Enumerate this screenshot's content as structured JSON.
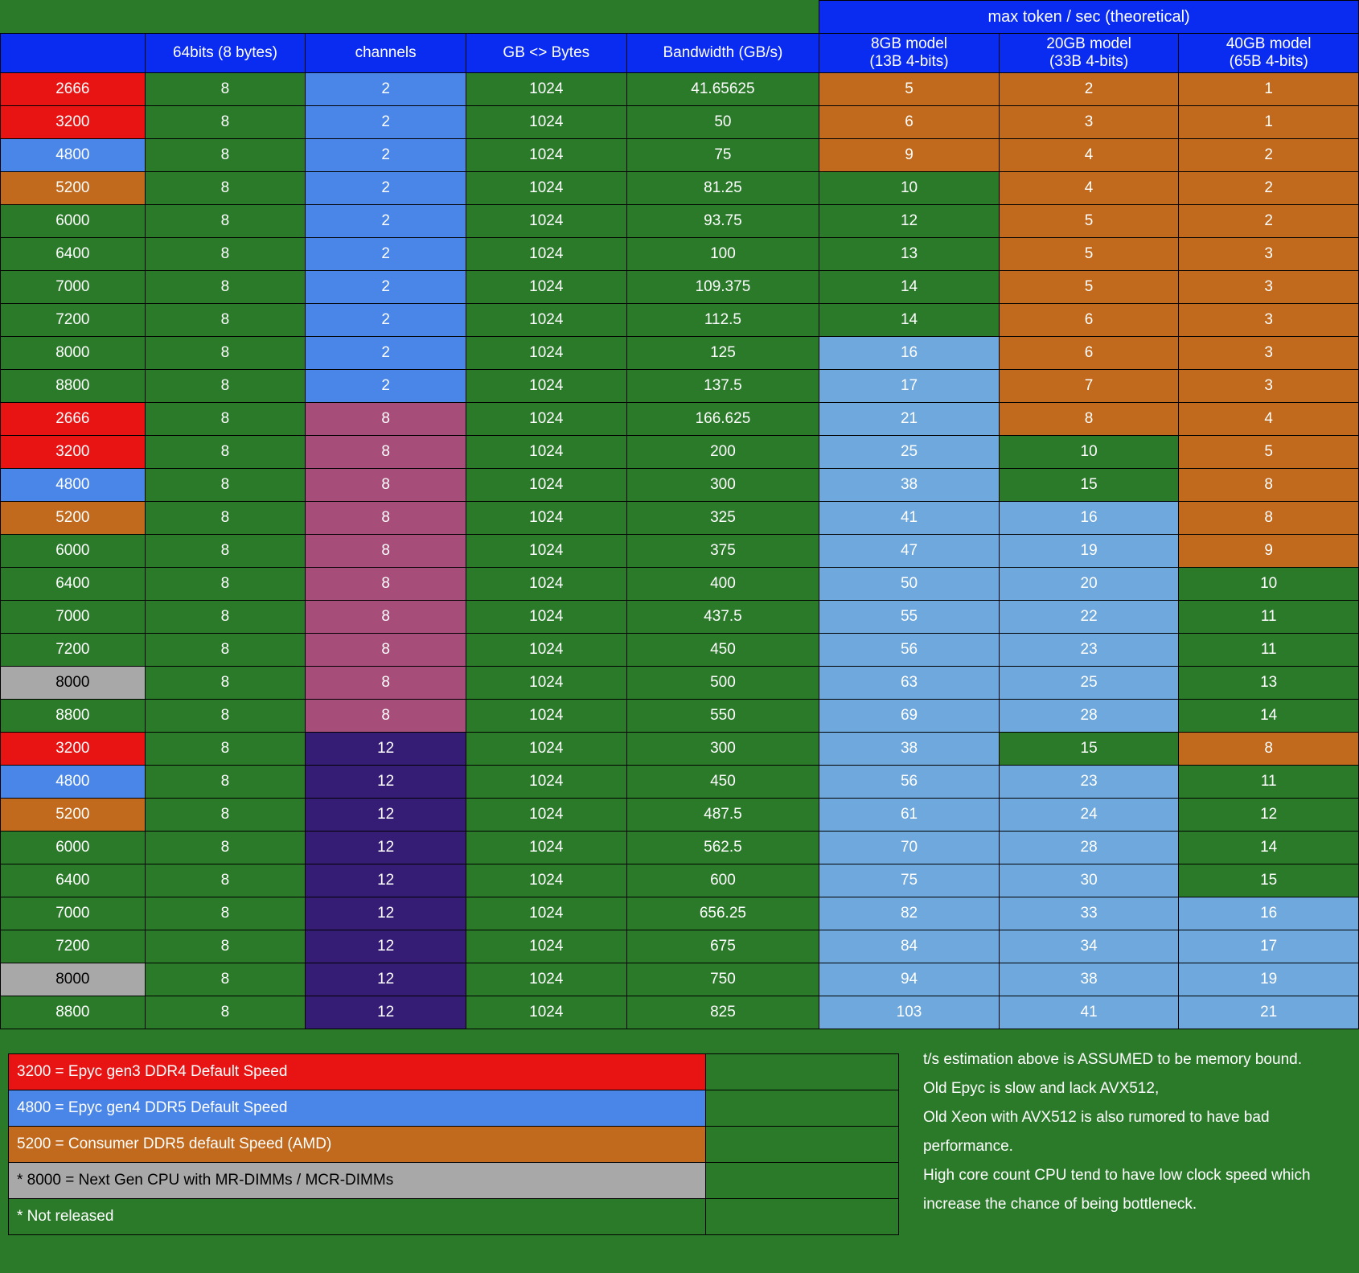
{
  "colors": {
    "bg_green": "#2a7a2a",
    "header_blue": "#0a2cf0",
    "red": "#e81313",
    "blue_cell": "#4a86e8",
    "orange": "#c1691c",
    "gray": "#a8a8a8",
    "purple_light": "#a64d79",
    "purple_dark": "#351c75",
    "lightblue": "#6fa8dc",
    "black": "#000000",
    "white": "#ffffff"
  },
  "header_group": "max token / sec (theoretical)",
  "headers": {
    "col0": "",
    "col1": "64bits (8 bytes)",
    "col2": "channels",
    "col3": "GB <> Bytes",
    "col4": "Bandwidth (GB/s)",
    "col5_a": "8GB model",
    "col5_b": "(13B 4-bits)",
    "col6_a": "20GB model",
    "col6_b": "(33B 4-bits)",
    "col7_a": "40GB model",
    "col7_b": "(65B 4-bits)"
  },
  "rows": [
    {
      "c0": "2666",
      "c0bg": "red",
      "c1": "8",
      "c2": "2",
      "c2bg": "blue_cell",
      "c3": "1024",
      "c4": "41.65625",
      "c5": "5",
      "c5bg": "orange",
      "c6": "2",
      "c6bg": "orange",
      "c7": "1",
      "c7bg": "orange"
    },
    {
      "c0": "3200",
      "c0bg": "red",
      "c1": "8",
      "c2": "2",
      "c2bg": "blue_cell",
      "c3": "1024",
      "c4": "50",
      "c5": "6",
      "c5bg": "orange",
      "c6": "3",
      "c6bg": "orange",
      "c7": "1",
      "c7bg": "orange"
    },
    {
      "c0": "4800",
      "c0bg": "blue_cell",
      "c1": "8",
      "c2": "2",
      "c2bg": "blue_cell",
      "c3": "1024",
      "c4": "75",
      "c5": "9",
      "c5bg": "orange",
      "c6": "4",
      "c6bg": "orange",
      "c7": "2",
      "c7bg": "orange"
    },
    {
      "c0": "5200",
      "c0bg": "orange",
      "c1": "8",
      "c2": "2",
      "c2bg": "blue_cell",
      "c3": "1024",
      "c4": "81.25",
      "c5": "10",
      "c5bg": "bg_green",
      "c6": "4",
      "c6bg": "orange",
      "c7": "2",
      "c7bg": "orange"
    },
    {
      "c0": "6000",
      "c0bg": "bg_green",
      "c1": "8",
      "c2": "2",
      "c2bg": "blue_cell",
      "c3": "1024",
      "c4": "93.75",
      "c5": "12",
      "c5bg": "bg_green",
      "c6": "5",
      "c6bg": "orange",
      "c7": "2",
      "c7bg": "orange"
    },
    {
      "c0": "6400",
      "c0bg": "bg_green",
      "c1": "8",
      "c2": "2",
      "c2bg": "blue_cell",
      "c3": "1024",
      "c4": "100",
      "c5": "13",
      "c5bg": "bg_green",
      "c6": "5",
      "c6bg": "orange",
      "c7": "3",
      "c7bg": "orange"
    },
    {
      "c0": "7000",
      "c0bg": "bg_green",
      "c1": "8",
      "c2": "2",
      "c2bg": "blue_cell",
      "c3": "1024",
      "c4": "109.375",
      "c5": "14",
      "c5bg": "bg_green",
      "c6": "5",
      "c6bg": "orange",
      "c7": "3",
      "c7bg": "orange"
    },
    {
      "c0": "7200",
      "c0bg": "bg_green",
      "c1": "8",
      "c2": "2",
      "c2bg": "blue_cell",
      "c3": "1024",
      "c4": "112.5",
      "c5": "14",
      "c5bg": "bg_green",
      "c6": "6",
      "c6bg": "orange",
      "c7": "3",
      "c7bg": "orange"
    },
    {
      "c0": "8000",
      "c0bg": "bg_green",
      "c1": "8",
      "c2": "2",
      "c2bg": "blue_cell",
      "c3": "1024",
      "c4": "125",
      "c5": "16",
      "c5bg": "lightblue",
      "c6": "6",
      "c6bg": "orange",
      "c7": "3",
      "c7bg": "orange"
    },
    {
      "c0": "8800",
      "c0bg": "bg_green",
      "c1": "8",
      "c2": "2",
      "c2bg": "blue_cell",
      "c3": "1024",
      "c4": "137.5",
      "c5": "17",
      "c5bg": "lightblue",
      "c6": "7",
      "c6bg": "orange",
      "c7": "3",
      "c7bg": "orange"
    },
    {
      "c0": "2666",
      "c0bg": "red",
      "c1": "8",
      "c2": "8",
      "c2bg": "purple_light",
      "c3": "1024",
      "c4": "166.625",
      "c5": "21",
      "c5bg": "lightblue",
      "c6": "8",
      "c6bg": "orange",
      "c7": "4",
      "c7bg": "orange"
    },
    {
      "c0": "3200",
      "c0bg": "red",
      "c1": "8",
      "c2": "8",
      "c2bg": "purple_light",
      "c3": "1024",
      "c4": "200",
      "c5": "25",
      "c5bg": "lightblue",
      "c6": "10",
      "c6bg": "bg_green",
      "c7": "5",
      "c7bg": "orange"
    },
    {
      "c0": "4800",
      "c0bg": "blue_cell",
      "c1": "8",
      "c2": "8",
      "c2bg": "purple_light",
      "c3": "1024",
      "c4": "300",
      "c5": "38",
      "c5bg": "lightblue",
      "c6": "15",
      "c6bg": "bg_green",
      "c7": "8",
      "c7bg": "orange"
    },
    {
      "c0": "5200",
      "c0bg": "orange",
      "c1": "8",
      "c2": "8",
      "c2bg": "purple_light",
      "c3": "1024",
      "c4": "325",
      "c5": "41",
      "c5bg": "lightblue",
      "c6": "16",
      "c6bg": "lightblue",
      "c7": "8",
      "c7bg": "orange"
    },
    {
      "c0": "6000",
      "c0bg": "bg_green",
      "c1": "8",
      "c2": "8",
      "c2bg": "purple_light",
      "c3": "1024",
      "c4": "375",
      "c5": "47",
      "c5bg": "lightblue",
      "c6": "19",
      "c6bg": "lightblue",
      "c7": "9",
      "c7bg": "orange"
    },
    {
      "c0": "6400",
      "c0bg": "bg_green",
      "c1": "8",
      "c2": "8",
      "c2bg": "purple_light",
      "c3": "1024",
      "c4": "400",
      "c5": "50",
      "c5bg": "lightblue",
      "c6": "20",
      "c6bg": "lightblue",
      "c7": "10",
      "c7bg": "bg_green"
    },
    {
      "c0": "7000",
      "c0bg": "bg_green",
      "c1": "8",
      "c2": "8",
      "c2bg": "purple_light",
      "c3": "1024",
      "c4": "437.5",
      "c5": "55",
      "c5bg": "lightblue",
      "c6": "22",
      "c6bg": "lightblue",
      "c7": "11",
      "c7bg": "bg_green"
    },
    {
      "c0": "7200",
      "c0bg": "bg_green",
      "c1": "8",
      "c2": "8",
      "c2bg": "purple_light",
      "c3": "1024",
      "c4": "450",
      "c5": "56",
      "c5bg": "lightblue",
      "c6": "23",
      "c6bg": "lightblue",
      "c7": "11",
      "c7bg": "bg_green"
    },
    {
      "c0": "8000",
      "c0bg": "gray",
      "c1": "8",
      "c2": "8",
      "c2bg": "purple_light",
      "c3": "1024",
      "c4": "500",
      "c5": "63",
      "c5bg": "lightblue",
      "c6": "25",
      "c6bg": "lightblue",
      "c7": "13",
      "c7bg": "bg_green"
    },
    {
      "c0": "8800",
      "c0bg": "bg_green",
      "c1": "8",
      "c2": "8",
      "c2bg": "purple_light",
      "c3": "1024",
      "c4": "550",
      "c5": "69",
      "c5bg": "lightblue",
      "c6": "28",
      "c6bg": "lightblue",
      "c7": "14",
      "c7bg": "bg_green"
    },
    {
      "c0": "3200",
      "c0bg": "red",
      "c1": "8",
      "c2": "12",
      "c2bg": "purple_dark",
      "c3": "1024",
      "c4": "300",
      "c5": "38",
      "c5bg": "lightblue",
      "c6": "15",
      "c6bg": "bg_green",
      "c7": "8",
      "c7bg": "orange"
    },
    {
      "c0": "4800",
      "c0bg": "blue_cell",
      "c1": "8",
      "c2": "12",
      "c2bg": "purple_dark",
      "c3": "1024",
      "c4": "450",
      "c5": "56",
      "c5bg": "lightblue",
      "c6": "23",
      "c6bg": "lightblue",
      "c7": "11",
      "c7bg": "bg_green"
    },
    {
      "c0": "5200",
      "c0bg": "orange",
      "c1": "8",
      "c2": "12",
      "c2bg": "purple_dark",
      "c3": "1024",
      "c4": "487.5",
      "c5": "61",
      "c5bg": "lightblue",
      "c6": "24",
      "c6bg": "lightblue",
      "c7": "12",
      "c7bg": "bg_green"
    },
    {
      "c0": "6000",
      "c0bg": "bg_green",
      "c1": "8",
      "c2": "12",
      "c2bg": "purple_dark",
      "c3": "1024",
      "c4": "562.5",
      "c5": "70",
      "c5bg": "lightblue",
      "c6": "28",
      "c6bg": "lightblue",
      "c7": "14",
      "c7bg": "bg_green"
    },
    {
      "c0": "6400",
      "c0bg": "bg_green",
      "c1": "8",
      "c2": "12",
      "c2bg": "purple_dark",
      "c3": "1024",
      "c4": "600",
      "c5": "75",
      "c5bg": "lightblue",
      "c6": "30",
      "c6bg": "lightblue",
      "c7": "15",
      "c7bg": "bg_green"
    },
    {
      "c0": "7000",
      "c0bg": "bg_green",
      "c1": "8",
      "c2": "12",
      "c2bg": "purple_dark",
      "c3": "1024",
      "c4": "656.25",
      "c5": "82",
      "c5bg": "lightblue",
      "c6": "33",
      "c6bg": "lightblue",
      "c7": "16",
      "c7bg": "lightblue"
    },
    {
      "c0": "7200",
      "c0bg": "bg_green",
      "c1": "8",
      "c2": "12",
      "c2bg": "purple_dark",
      "c3": "1024",
      "c4": "675",
      "c5": "84",
      "c5bg": "lightblue",
      "c6": "34",
      "c6bg": "lightblue",
      "c7": "17",
      "c7bg": "lightblue"
    },
    {
      "c0": "8000",
      "c0bg": "gray",
      "c1": "8",
      "c2": "12",
      "c2bg": "purple_dark",
      "c3": "1024",
      "c4": "750",
      "c5": "94",
      "c5bg": "lightblue",
      "c6": "38",
      "c6bg": "lightblue",
      "c7": "19",
      "c7bg": "lightblue"
    },
    {
      "c0": "8800",
      "c0bg": "bg_green",
      "c1": "8",
      "c2": "12",
      "c2bg": "purple_dark",
      "c3": "1024",
      "c4": "825",
      "c5": "103",
      "c5bg": "lightblue",
      "c6": "41",
      "c6bg": "lightblue",
      "c7": "21",
      "c7bg": "lightblue"
    }
  ],
  "legend": [
    {
      "text": "3200 = Epyc gen3 DDR4 Default Speed",
      "bg": "red"
    },
    {
      "text": "4800 = Epyc gen4 DDR5 Default Speed",
      "bg": "blue_cell"
    },
    {
      "text": "5200 = Consumer DDR5 default Speed (AMD)",
      "bg": "orange"
    },
    {
      "text": "* 8000 = Next Gen CPU with MR-DIMMs / MCR-DIMMs",
      "bg": "gray"
    },
    {
      "text": "* Not released",
      "bg": "bg_green"
    }
  ],
  "notes": [
    "t/s estimation above is ASSUMED to be memory bound.",
    "Old Epyc is slow and lack AVX512,",
    "Old Xeon with AVX512 is also rumored to have bad performance.",
    "High core count CPU tend to have low clock speed which increase the chance of being bottleneck."
  ],
  "col_widths": [
    "180",
    "200",
    "200",
    "200",
    "240",
    "224",
    "224",
    "224"
  ]
}
